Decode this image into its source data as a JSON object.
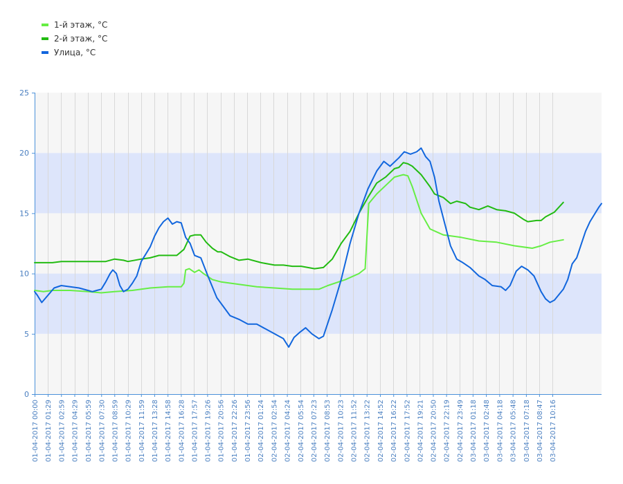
{
  "chart_data": {
    "type": "line",
    "ylim": [
      0,
      25
    ],
    "yticks": [
      "0",
      "5",
      "10",
      "15",
      "20",
      "25"
    ],
    "x_tick_labels": [
      "01-04-2017 00:00",
      "01-04-2017 01:29",
      "01-04-2017 02:59",
      "01-04-2017 04:29",
      "01-04-2017 05:59",
      "01-04-2017 07:30",
      "01-04-2017 08:59",
      "01-04-2017 10:29",
      "01-04-2017 11:59",
      "01-04-2017 13:28",
      "01-04-2017 14:58",
      "01-04-2017 16:28",
      "01-04-2017 17:57",
      "01-04-2017 19:26",
      "01-04-2017 20:56",
      "01-04-2017 22:26",
      "01-04-2017 23:56",
      "02-04-2017 01:24",
      "02-04-2017 02:54",
      "02-04-2017 04:24",
      "02-04-2017 05:54",
      "02-04-2017 07:23",
      "02-04-2017 08:53",
      "02-04-2017 10:23",
      "02-04-2017 11:52",
      "02-04-2017 13:22",
      "02-04-2017 14:52",
      "02-04-2017 16:22",
      "02-04-2017 17:52",
      "02-04-2017 19:21",
      "02-04-2017 20:50",
      "02-04-2017 22:19",
      "02-04-2017 23:49",
      "03-04-2017 01:18",
      "03-04-2017 02:48",
      "03-04-2017 04:18",
      "03-04-2017 05:48",
      "03-04-2017 07:18",
      "03-04-2017 08:47",
      "03-04-2017 10:16"
    ],
    "x_hours": [
      0,
      1.48,
      2.98,
      4.48,
      5.98,
      7.5,
      8.98,
      10.48,
      11.98,
      13.47,
      14.97,
      16.47,
      17.95,
      19.43,
      20.93,
      22.43,
      23.93,
      25.4,
      26.9,
      28.4,
      29.9,
      31.38,
      32.88,
      34.38,
      35.87,
      37.37,
      38.87,
      40.37,
      41.87,
      43.35,
      44.83,
      46.32,
      47.82,
      49.3,
      50.8,
      52.3,
      53.8,
      55.3,
      56.78,
      58.27
    ],
    "series": [
      {
        "name": "1-й этаж, °C",
        "color": "#66ee44",
        "points": [
          [
            0,
            8.6
          ],
          [
            1,
            8.5
          ],
          [
            2,
            8.6
          ],
          [
            4,
            8.6
          ],
          [
            6,
            8.5
          ],
          [
            7.5,
            8.4
          ],
          [
            9,
            8.5
          ],
          [
            11,
            8.6
          ],
          [
            13,
            8.8
          ],
          [
            15,
            8.9
          ],
          [
            16.5,
            8.9
          ],
          [
            16.8,
            9.2
          ],
          [
            17,
            10.3
          ],
          [
            17.4,
            10.4
          ],
          [
            18,
            10.1
          ],
          [
            18.5,
            10.3
          ],
          [
            19,
            10
          ],
          [
            20,
            9.5
          ],
          [
            21,
            9.3
          ],
          [
            23,
            9.1
          ],
          [
            25,
            8.9
          ],
          [
            27,
            8.8
          ],
          [
            29,
            8.7
          ],
          [
            32,
            8.7
          ],
          [
            33,
            9.0
          ],
          [
            35,
            9.5
          ],
          [
            36.5,
            10.0
          ],
          [
            37.2,
            10.4
          ],
          [
            37.6,
            15.8
          ],
          [
            38.5,
            16.6
          ],
          [
            39.5,
            17.3
          ],
          [
            40.5,
            18
          ],
          [
            41.5,
            18.2
          ],
          [
            42,
            18.1
          ],
          [
            42.5,
            17.2
          ],
          [
            43.5,
            15
          ],
          [
            44.5,
            13.7
          ],
          [
            46,
            13.2
          ],
          [
            48,
            13
          ],
          [
            50,
            12.7
          ],
          [
            52,
            12.6
          ],
          [
            54,
            12.3
          ],
          [
            56,
            12.1
          ],
          [
            57,
            12.3
          ],
          [
            58,
            12.6
          ],
          [
            59.5,
            12.8
          ]
        ]
      },
      {
        "name": "2-й этаж, °C",
        "color": "#22bb11",
        "points": [
          [
            0,
            10.9
          ],
          [
            2,
            10.9
          ],
          [
            3,
            11
          ],
          [
            5,
            11
          ],
          [
            8,
            11
          ],
          [
            9,
            11.2
          ],
          [
            10,
            11.1
          ],
          [
            10.5,
            11
          ],
          [
            12,
            11.2
          ],
          [
            13,
            11.3
          ],
          [
            14,
            11.5
          ],
          [
            16,
            11.5
          ],
          [
            16.8,
            12
          ],
          [
            17.5,
            13.1
          ],
          [
            18,
            13.2
          ],
          [
            18.7,
            13.2
          ],
          [
            19.3,
            12.6
          ],
          [
            20,
            12.1
          ],
          [
            20.6,
            11.8
          ],
          [
            21,
            11.8
          ],
          [
            22,
            11.4
          ],
          [
            23,
            11.1
          ],
          [
            24,
            11.2
          ],
          [
            25.5,
            10.9
          ],
          [
            27,
            10.7
          ],
          [
            28,
            10.7
          ],
          [
            29,
            10.6
          ],
          [
            30,
            10.6
          ],
          [
            31.5,
            10.4
          ],
          [
            32.5,
            10.5
          ],
          [
            33.5,
            11.2
          ],
          [
            34.5,
            12.5
          ],
          [
            35.5,
            13.5
          ],
          [
            36.5,
            15.0
          ],
          [
            37.5,
            16.3
          ],
          [
            38.5,
            17.5
          ],
          [
            39.5,
            18
          ],
          [
            40.5,
            18.7
          ],
          [
            41,
            18.8
          ],
          [
            41.5,
            19.2
          ],
          [
            42,
            19.1
          ],
          [
            42.5,
            18.9
          ],
          [
            43.5,
            18.2
          ],
          [
            44.5,
            17.2
          ],
          [
            45,
            16.6
          ],
          [
            46,
            16.3
          ],
          [
            46.8,
            15.8
          ],
          [
            47.5,
            16
          ],
          [
            48.5,
            15.8
          ],
          [
            49,
            15.5
          ],
          [
            50,
            15.3
          ],
          [
            51,
            15.6
          ],
          [
            52,
            15.3
          ],
          [
            53,
            15.2
          ],
          [
            54,
            15
          ],
          [
            55,
            14.5
          ],
          [
            55.5,
            14.3
          ],
          [
            56.5,
            14.4
          ],
          [
            57,
            14.4
          ],
          [
            57.5,
            14.7
          ],
          [
            58.5,
            15.1
          ],
          [
            59.5,
            15.9
          ]
        ]
      },
      {
        "name": "Улица, °C",
        "color": "#1166dd",
        "points": [
          [
            0,
            8.5
          ],
          [
            0.3,
            8.2
          ],
          [
            0.8,
            7.6
          ],
          [
            1.5,
            8.2
          ],
          [
            2.2,
            8.8
          ],
          [
            3,
            9
          ],
          [
            4,
            8.9
          ],
          [
            5,
            8.8
          ],
          [
            6,
            8.6
          ],
          [
            6.5,
            8.5
          ],
          [
            7,
            8.6
          ],
          [
            7.5,
            8.7
          ],
          [
            8,
            9.3
          ],
          [
            8.5,
            10
          ],
          [
            8.8,
            10.3
          ],
          [
            9.2,
            10
          ],
          [
            9.6,
            9
          ],
          [
            10,
            8.5
          ],
          [
            10.5,
            8.7
          ],
          [
            11,
            9.2
          ],
          [
            11.5,
            9.8
          ],
          [
            12,
            11
          ],
          [
            12.5,
            11.6
          ],
          [
            13,
            12.2
          ],
          [
            13.5,
            13.1
          ],
          [
            14,
            13.8
          ],
          [
            14.5,
            14.3
          ],
          [
            15,
            14.6
          ],
          [
            15.5,
            14.1
          ],
          [
            16,
            14.3
          ],
          [
            16.5,
            14.2
          ],
          [
            17,
            13
          ],
          [
            17.5,
            12.5
          ],
          [
            18,
            11.5
          ],
          [
            18.7,
            11.3
          ],
          [
            19.5,
            9.8
          ],
          [
            20.5,
            8
          ],
          [
            21.5,
            7
          ],
          [
            22,
            6.5
          ],
          [
            23,
            6.2
          ],
          [
            24,
            5.8
          ],
          [
            25,
            5.8
          ],
          [
            26,
            5.4
          ],
          [
            27,
            5.0
          ],
          [
            28,
            4.6
          ],
          [
            28.6,
            3.9
          ],
          [
            29.2,
            4.7
          ],
          [
            29.8,
            5.1
          ],
          [
            30.5,
            5.5
          ],
          [
            31.2,
            5
          ],
          [
            32,
            4.6
          ],
          [
            32.5,
            4.8
          ],
          [
            33.5,
            7
          ],
          [
            34.5,
            9.5
          ],
          [
            35.5,
            12.5
          ],
          [
            36.5,
            15
          ],
          [
            37.5,
            17
          ],
          [
            38.5,
            18.5
          ],
          [
            39.3,
            19.3
          ],
          [
            40,
            18.9
          ],
          [
            41,
            19.6
          ],
          [
            41.6,
            20.1
          ],
          [
            42.3,
            19.9
          ],
          [
            43.0,
            20.1
          ],
          [
            43.5,
            20.4
          ],
          [
            44,
            19.7
          ],
          [
            44.5,
            19.3
          ],
          [
            45,
            18
          ],
          [
            45.5,
            16
          ],
          [
            46.2,
            14
          ],
          [
            46.8,
            12.3
          ],
          [
            47.5,
            11.2
          ],
          [
            48.2,
            10.9
          ],
          [
            49,
            10.5
          ],
          [
            50,
            9.8
          ],
          [
            50.7,
            9.5
          ],
          [
            51.5,
            9.0
          ],
          [
            52.5,
            8.9
          ],
          [
            53,
            8.6
          ],
          [
            53.5,
            9.0
          ],
          [
            54.2,
            10.2
          ],
          [
            54.8,
            10.6
          ],
          [
            55.5,
            10.3
          ],
          [
            56.2,
            9.8
          ],
          [
            57,
            8.5
          ],
          [
            57.5,
            7.9
          ],
          [
            58,
            7.6
          ],
          [
            58.5,
            7.8
          ],
          [
            59.5,
            8.7
          ],
          [
            60,
            9.5
          ],
          [
            60.5,
            10.8
          ],
          [
            61,
            11.3
          ],
          [
            61.5,
            12.4
          ],
          [
            62,
            13.5
          ],
          [
            62.5,
            14.3
          ],
          [
            63,
            14.9
          ],
          [
            63.5,
            15.5
          ],
          [
            63.8,
            15.8
          ]
        ]
      }
    ]
  }
}
